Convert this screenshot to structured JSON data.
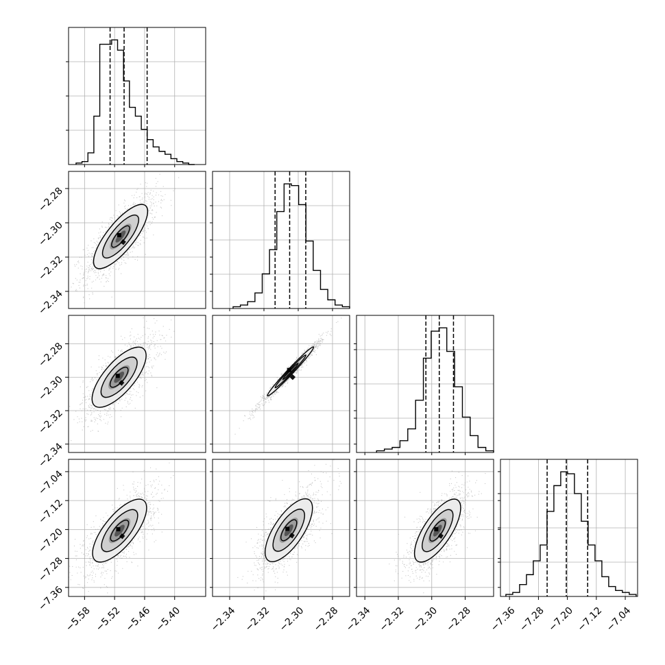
{
  "chart_data": {
    "type": "corner",
    "grid": true,
    "parameters": [
      {
        "range": [
          -5.612,
          -5.338
        ],
        "ticks": [
          -5.58,
          -5.52,
          -5.46,
          -5.4
        ],
        "tick_labels": [
          "−5.58",
          "−5.52",
          "−5.46",
          "−5.40"
        ],
        "quantiles": [
          -5.529,
          -5.501,
          -5.455
        ],
        "hist": {
          "edges_range": [
            -5.597,
            -5.36
          ],
          "counts": [
            1,
            2,
            8,
            33,
            82,
            82,
            85,
            78,
            57,
            39,
            33,
            24,
            17,
            12,
            9,
            7,
            4,
            2,
            1,
            0
          ]
        }
      },
      {
        "range": [
          -2.35,
          -2.27
        ],
        "ticks": [
          -2.34,
          -2.32,
          -2.3,
          -2.28
        ],
        "tick_labels": [
          "−2.34",
          "−2.32",
          "−2.30",
          "−2.28"
        ],
        "quantiles": [
          -2.3135,
          -2.305,
          -2.2956
        ],
        "hist": {
          "edges_range": [
            -2.338,
            -2.27
          ],
          "counts": [
            1,
            2,
            4,
            9,
            20,
            34,
            56,
            72,
            71,
            60,
            39,
            22,
            11,
            5,
            2,
            1
          ]
        }
      },
      {
        "range": [
          -2.345,
          -2.263
        ],
        "ticks": [
          -2.34,
          -2.32,
          -2.3,
          -2.28
        ],
        "tick_labels": [
          "−2.34",
          "−2.32",
          "−2.30",
          "−2.28"
        ],
        "quantiles": [
          -2.3035,
          -2.2955,
          -2.287
        ],
        "hist": {
          "edges_range": [
            -2.333,
            -2.263
          ],
          "counts": [
            1,
            2,
            3,
            7,
            14,
            31,
            56,
            72,
            74,
            60,
            39,
            21,
            10,
            3,
            1
          ]
        }
      },
      {
        "range": [
          -7.385,
          -7.006
        ],
        "ticks": [
          -7.36,
          -7.28,
          -7.2,
          -7.12,
          -7.04
        ],
        "tick_labels": [
          "−7.36",
          "−7.28",
          "−7.20",
          "−7.12",
          "−7.04"
        ],
        "quantiles": [
          -7.256,
          -7.203,
          -7.144
        ],
        "hist": {
          "edges_range": [
            -7.37,
            -7.01
          ],
          "counts": [
            1,
            2,
            6,
            11,
            18,
            26,
            43,
            56,
            63,
            62,
            52,
            38,
            26,
            18,
            10,
            5,
            3,
            2,
            1
          ]
        }
      }
    ],
    "pairs": [
      {
        "row": 1,
        "col": 0,
        "center": [
          -5.508,
          -2.308
        ],
        "sd": [
          0.036,
          0.0125
        ],
        "rho": 0.78
      },
      {
        "row": 2,
        "col": 0,
        "center": [
          -5.511,
          -2.3
        ],
        "sd": [
          0.036,
          0.012
        ],
        "rho": 0.72
      },
      {
        "row": 2,
        "col": 1,
        "center": [
          -2.3045,
          -2.2965
        ],
        "sd": [
          0.009,
          0.0098
        ],
        "rho": 0.985
      },
      {
        "row": 3,
        "col": 0,
        "center": [
          -5.51,
          -7.203
        ],
        "sd": [
          0.036,
          0.058
        ],
        "rho": 0.72
      },
      {
        "row": 3,
        "col": 1,
        "center": [
          -2.3055,
          -7.202
        ],
        "sd": [
          0.0092,
          0.058
        ],
        "rho": 0.7
      },
      {
        "row": 3,
        "col": 2,
        "center": [
          -2.2965,
          -7.203
        ],
        "sd": [
          0.0092,
          0.058
        ],
        "rho": 0.72
      }
    ]
  }
}
